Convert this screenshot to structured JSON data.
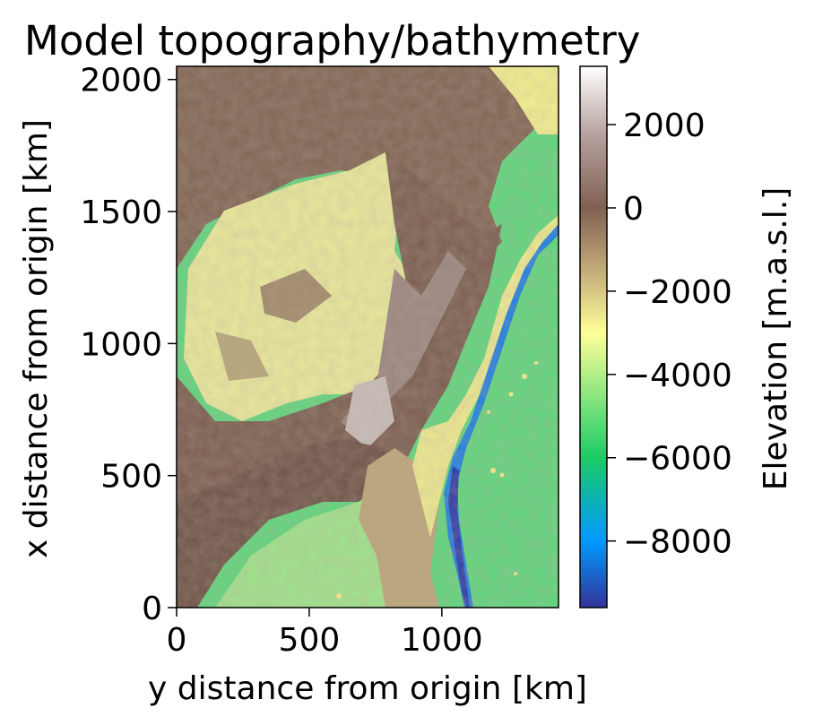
{
  "chart_data": {
    "type": "heatmap",
    "title": "Model topography/bathymetry",
    "xlabel": "y distance from origin [km]",
    "ylabel": "x distance from origin [km]",
    "xlim": [
      0,
      1440
    ],
    "ylim": [
      0,
      2050
    ],
    "xticks": [
      0,
      500,
      1000
    ],
    "xtick_labels": [
      "0",
      "500",
      "1000"
    ],
    "yticks": [
      0,
      500,
      1000,
      1500,
      2000
    ],
    "ytick_labels": [
      "0",
      "500",
      "1000",
      "1500",
      "2000"
    ],
    "grid": false,
    "colormap": "terrain",
    "colorbar": {
      "label": "Elevation [m.a.s.l.]",
      "vmin": -9600,
      "vmax": 3400,
      "ticks": [
        2000,
        0,
        -2000,
        -4000,
        -6000,
        -8000
      ],
      "tick_labels": [
        "2000",
        "0",
        "−2000",
        "−4000",
        "−6000",
        "−8000"
      ],
      "stops": [
        {
          "value": -9600,
          "color": "#333399"
        },
        {
          "value": -8000,
          "color": "#0099ff"
        },
        {
          "value": -6000,
          "color": "#1acc66"
        },
        {
          "value": -4000,
          "color": "#b3ee88"
        },
        {
          "value": -3000,
          "color": "#ffff99"
        },
        {
          "value": -1500,
          "color": "#c2ab7a"
        },
        {
          "value": 0,
          "color": "#7f6152"
        },
        {
          "value": 1800,
          "color": "#b8a3a0"
        },
        {
          "value": 3400,
          "color": "#ffffff"
        }
      ]
    }
  }
}
